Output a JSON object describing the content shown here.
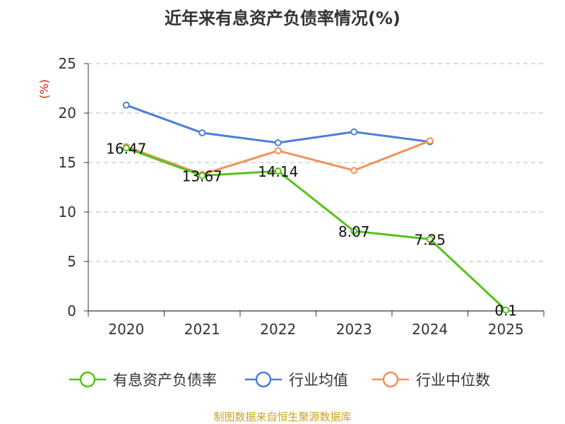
{
  "chart_data": {
    "type": "line",
    "title": "近年来有息资产负债率情况(%)",
    "ylabel": "(%)",
    "xlabel": "",
    "categories": [
      "2020",
      "2021",
      "2022",
      "2023",
      "2024",
      "2025"
    ],
    "ylim": [
      0,
      25
    ],
    "yticks": [
      0,
      5,
      10,
      15,
      20,
      25
    ],
    "grid": "horizontal-dashed",
    "legend": "bottom",
    "series": [
      {
        "name": "有息资产负债率",
        "color": "#52c41a",
        "values": [
          16.47,
          13.67,
          14.14,
          8.07,
          7.25,
          0.1
        ],
        "labels": [
          "16.47",
          "13.67",
          "14.14",
          "8.07",
          "7.25",
          "0.1"
        ]
      },
      {
        "name": "行业均值",
        "color": "#4a7fd8",
        "values": [
          20.8,
          18.0,
          17.0,
          18.1,
          17.1,
          null
        ]
      },
      {
        "name": "行业中位数",
        "color": "#f4905a",
        "values": [
          16.6,
          13.8,
          16.2,
          14.2,
          17.2,
          null
        ]
      }
    ]
  },
  "source": "制图数据来自恒生聚源数据库"
}
